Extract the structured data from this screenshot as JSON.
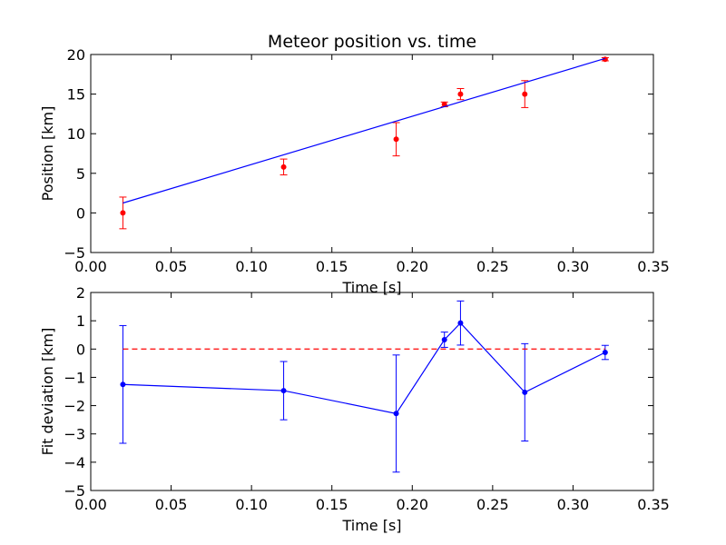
{
  "chart_data": [
    {
      "type": "scatter",
      "title": "Meteor position vs. time",
      "xlabel": "Time [s]",
      "ylabel": "Position [km]",
      "xlim": [
        0,
        0.35
      ],
      "ylim": [
        -5,
        20
      ],
      "xticks": [
        "0.00",
        "0.05",
        "0.10",
        "0.15",
        "0.20",
        "0.25",
        "0.30",
        "0.35"
      ],
      "yticks": [
        "−5",
        "0",
        "5",
        "10",
        "15",
        "20"
      ],
      "grid": false,
      "series": [
        {
          "kind": "points-with-errorbars",
          "color": "#ff0000",
          "x": [
            0.02,
            0.12,
            0.19,
            0.22,
            0.23,
            0.27,
            0.32
          ],
          "y": [
            0.0,
            5.8,
            9.3,
            13.7,
            15.0,
            15.0,
            19.4
          ],
          "yerr": [
            2.0,
            1.0,
            2.1,
            0.3,
            0.7,
            1.7,
            0.2
          ]
        },
        {
          "kind": "fit-line",
          "color": "#0000ff",
          "x": [
            0.02,
            0.32
          ],
          "y": [
            1.25,
            19.5
          ]
        }
      ]
    },
    {
      "type": "line",
      "xlabel": "Time [s]",
      "ylabel": "Fit deviation [km]",
      "xlim": [
        0,
        0.35
      ],
      "ylim": [
        -5,
        2
      ],
      "xticks": [
        "0.00",
        "0.05",
        "0.10",
        "0.15",
        "0.20",
        "0.25",
        "0.30",
        "0.35"
      ],
      "yticks": [
        "−5",
        "−4",
        "−3",
        "−2",
        "−1",
        "0",
        "1",
        "2"
      ],
      "grid": false,
      "series": [
        {
          "kind": "line-with-errorbars",
          "color": "#0000ff",
          "x": [
            0.02,
            0.12,
            0.19,
            0.22,
            0.23,
            0.27,
            0.32
          ],
          "y": [
            -1.25,
            -1.47,
            -2.28,
            0.33,
            0.92,
            -1.53,
            -0.12
          ],
          "yerr": [
            2.08,
            1.03,
            2.07,
            0.27,
            0.78,
            1.72,
            0.25
          ]
        },
        {
          "kind": "reference-line",
          "color": "#ff0000",
          "style": "dashed",
          "x": [
            0.02,
            0.32
          ],
          "y": [
            0,
            0
          ]
        }
      ]
    }
  ]
}
